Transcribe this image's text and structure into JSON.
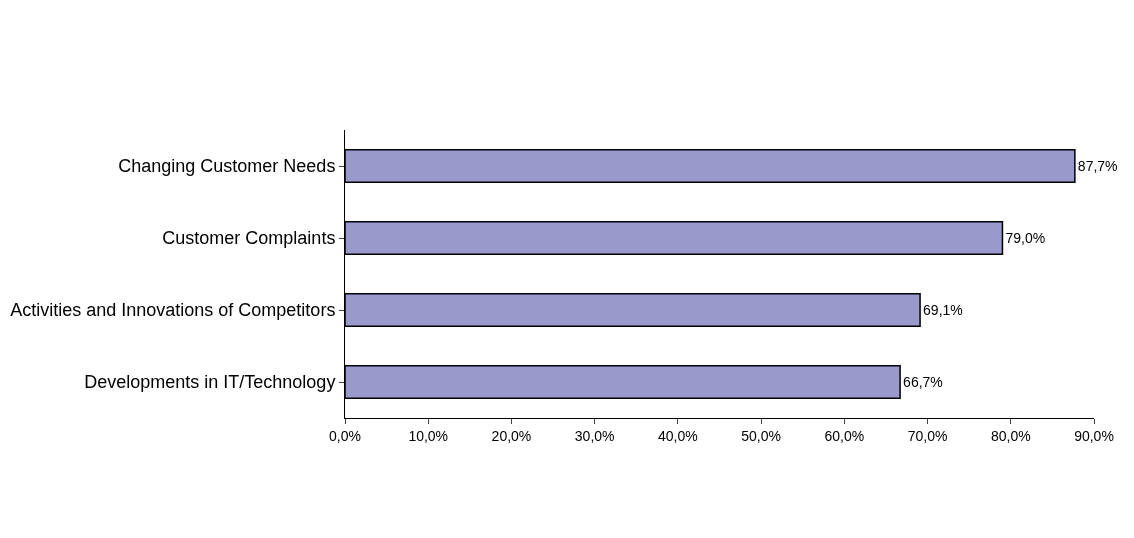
{
  "chart_data": {
    "type": "bar",
    "orientation": "horizontal",
    "categories": [
      "Changing Customer Needs",
      "Customer Complaints",
      "Activities and Innovations of Competitors",
      "Developments in IT/Technology"
    ],
    "values": [
      87.7,
      79.0,
      69.1,
      66.7
    ],
    "value_labels": [
      "87,7%",
      "79,0%",
      "69,1%",
      "66,7%"
    ],
    "color": "#9999cc",
    "xlim": [
      0,
      90
    ],
    "xticks": [
      {
        "value": 0,
        "label": "0,0%"
      },
      {
        "value": 10,
        "label": "10,0%"
      },
      {
        "value": 20,
        "label": "20,0%"
      },
      {
        "value": 30,
        "label": "30,0%"
      },
      {
        "value": 40,
        "label": "40,0%"
      },
      {
        "value": 50,
        "label": "50,0%"
      },
      {
        "value": 60,
        "label": "60,0%"
      },
      {
        "value": 70,
        "label": "70,0%"
      },
      {
        "value": 80,
        "label": "80,0%"
      },
      {
        "value": 90,
        "label": "90,0%"
      }
    ],
    "grid": false
  }
}
